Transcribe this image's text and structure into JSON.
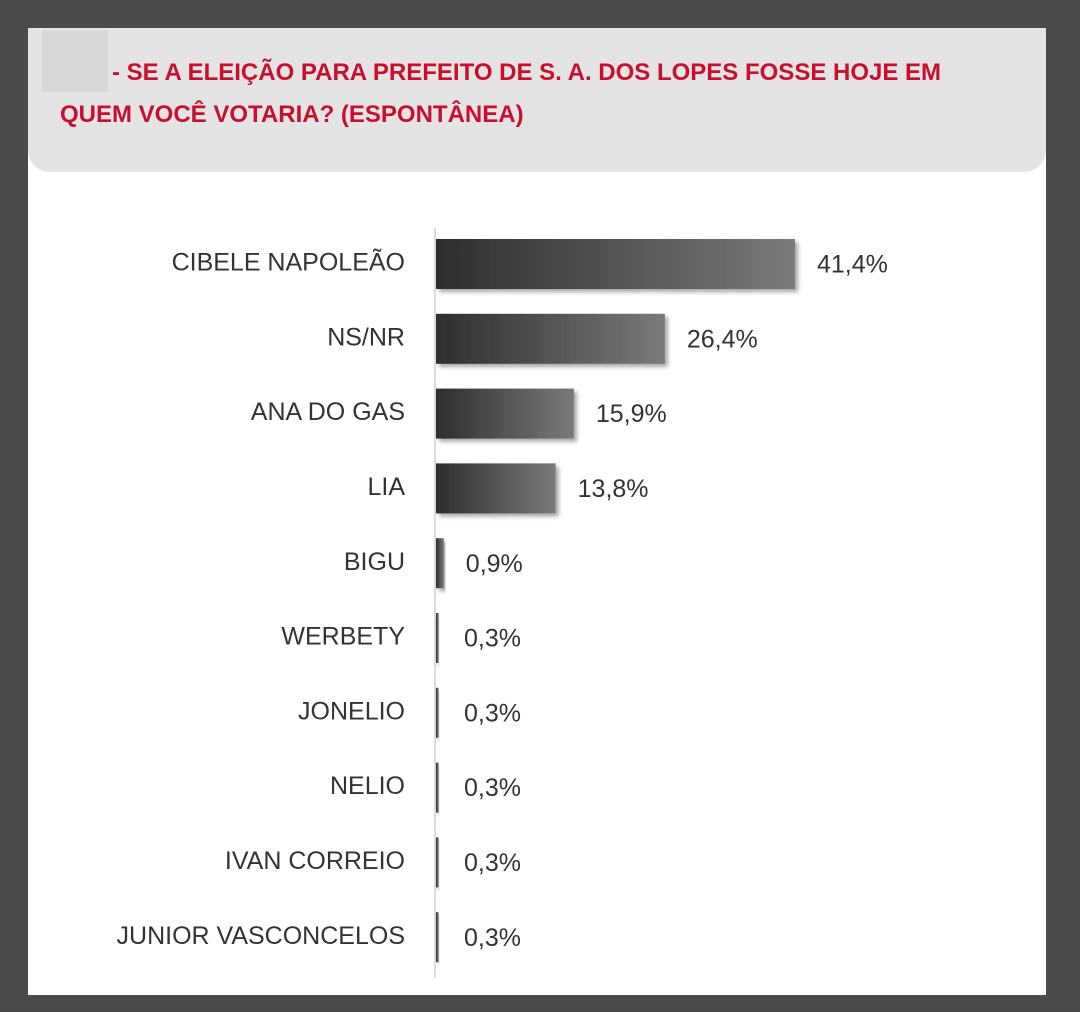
{
  "chart_data": {
    "type": "bar",
    "title": "- SE A ELEIÇÃO PARA PREFEITO DE S. A. DOS LOPES FOSSE HOJE EM QUEM VOCÊ VOTARIA? (ESPONTÂNEA)",
    "categories": [
      "CIBELE NAPOLEÃO",
      "NS/NR",
      "ANA DO GAS",
      "LIA",
      "BIGU",
      "WERBETY",
      "JONELIO",
      "NELIO",
      "IVAN CORREIO",
      "JUNIOR VASCONCELOS"
    ],
    "values": [
      41.4,
      26.4,
      15.9,
      13.8,
      0.9,
      0.3,
      0.3,
      0.3,
      0.3,
      0.3
    ],
    "value_labels": [
      "41,4%",
      "26,4%",
      "15,9%",
      "13,8%",
      "0,9%",
      "0,3%",
      "0,3%",
      "0,3%",
      "0,3%",
      "0,3%"
    ],
    "orientation": "horizontal",
    "color": "#4a4a4a"
  }
}
